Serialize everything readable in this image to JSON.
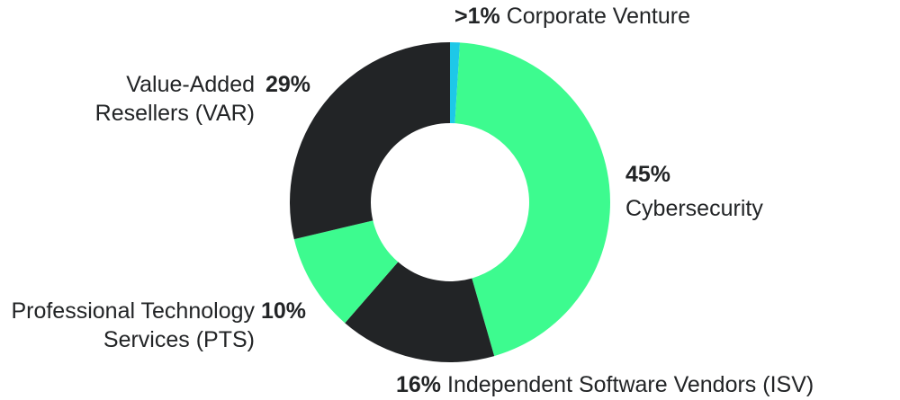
{
  "chart_data": {
    "type": "donut",
    "categories": [
      "Corporate Venture",
      "Cybersecurity",
      "Independent Software Vendors (ISV)",
      "Professional Technology Services (PTS)",
      "Value-Added Resellers (VAR)"
    ],
    "values": [
      1,
      45,
      16,
      10,
      29
    ],
    "value_labels": [
      ">1%",
      "45%",
      "16%",
      "10%",
      "29%"
    ],
    "colors": [
      "#1ec8e8",
      "#3dfb8f",
      "#222426",
      "#3dfb8f",
      "#222426"
    ]
  }
}
